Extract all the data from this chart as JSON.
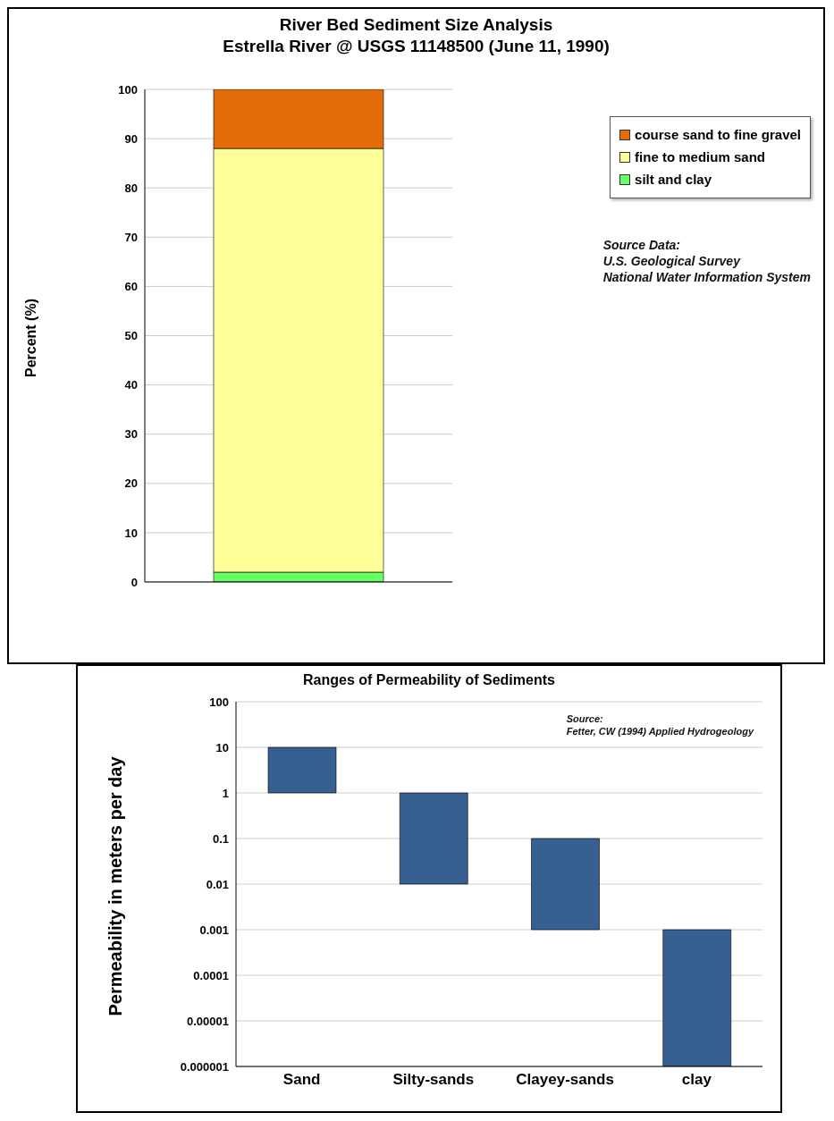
{
  "chart_data": [
    {
      "type": "bar",
      "title": "River Bed Sediment Size Analysis",
      "subtitle": "Estrella River @ USGS  11148500 (June 11, 1990)",
      "ylabel": "Percent (%)",
      "categories": [
        null
      ],
      "stacked": true,
      "series": [
        {
          "name": "silt and clay",
          "color": "#66ff66",
          "values": [
            2
          ]
        },
        {
          "name": "fine to medium sand",
          "color": "#ffff99",
          "values": [
            86
          ]
        },
        {
          "name": "course sand to fine gravel",
          "color": "#e36c09",
          "values": [
            12
          ]
        }
      ],
      "ylim": [
        0,
        100
      ],
      "yticks": [
        0,
        10,
        20,
        30,
        40,
        50,
        60,
        70,
        80,
        90,
        100
      ],
      "grid": "y",
      "legend": "top right",
      "annotations": [
        "Source Data:\nU.S. Geological Survey\nNational Water Information System"
      ]
    },
    {
      "type": "bar",
      "title": "Ranges of Permeability of Sediments",
      "ylabel": "Permeability in meters per day",
      "categories": [
        "Sand",
        "Silty-sands",
        "Clayey-sands",
        "clay"
      ],
      "base": [
        1,
        0.01,
        0.001,
        1e-06
      ],
      "values": [
        9,
        0.99,
        0.099,
        0.000999
      ],
      "color": "#366092",
      "log": "y",
      "ylim": [
        1e-06,
        100
      ],
      "yticks": [
        {
          "value": 1e-06,
          "label": "0.000001"
        },
        {
          "value": 1e-05,
          "label": "0.00001"
        },
        0.0001,
        0.001,
        0.01,
        0.1,
        1,
        10,
        100
      ],
      "grid": "y",
      "annotations": [
        "Source:\nFetter, CW (1994) Applied Hydrogeology"
      ]
    }
  ]
}
